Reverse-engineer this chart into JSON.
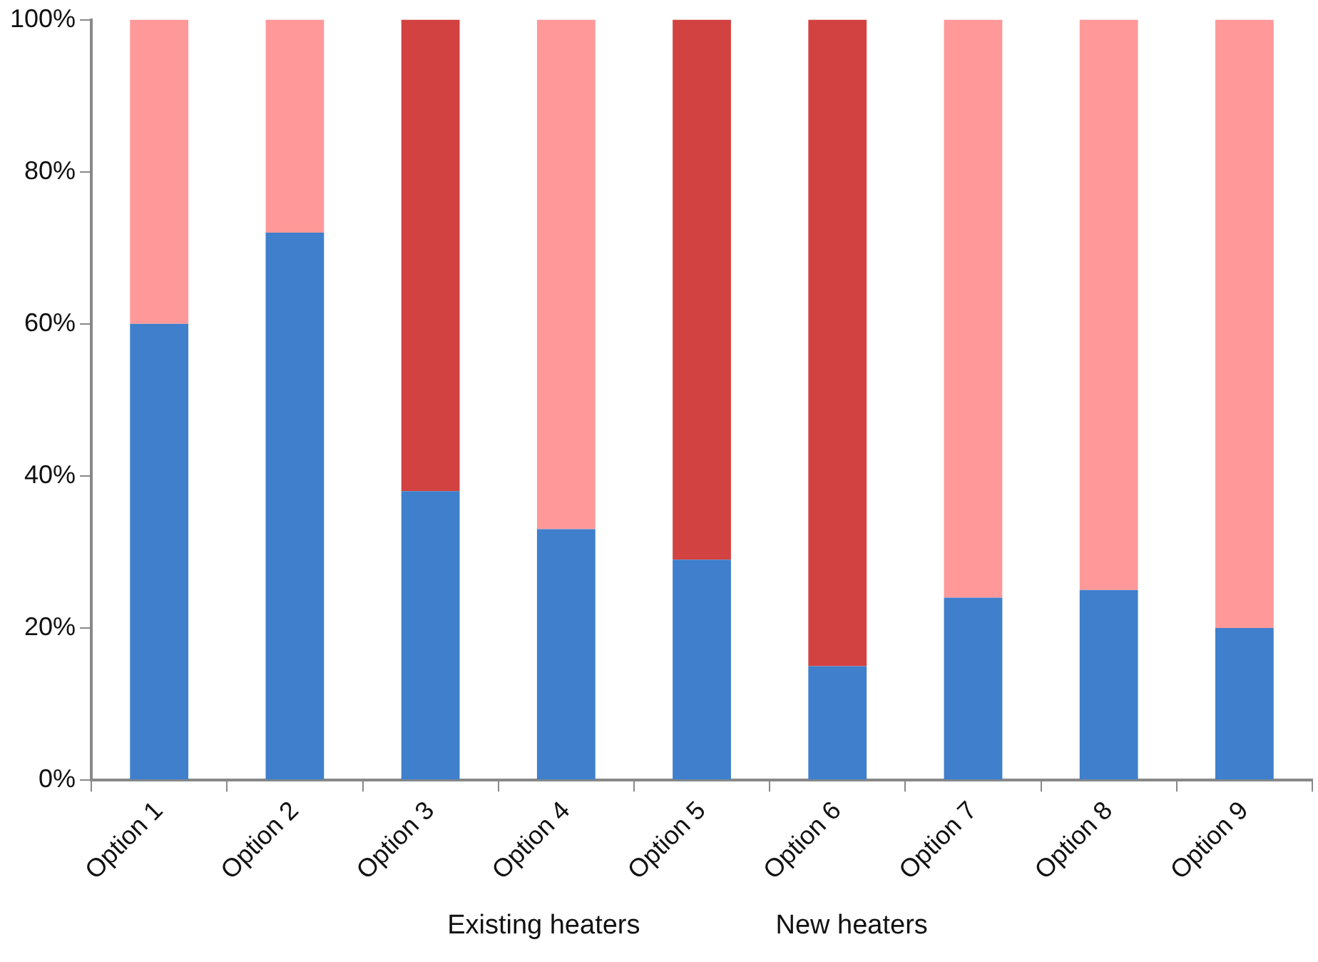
{
  "chart_data": {
    "type": "bar",
    "stacked": true,
    "categories": [
      "Option 1",
      "Option 2",
      "Option 3",
      "Option 4",
      "Option 5",
      "Option 6",
      "Option 7",
      "Option 8",
      "Option 9"
    ],
    "series": [
      {
        "color": "#3f7fcc",
        "values": [
          60,
          72,
          38,
          33,
          29,
          15,
          24,
          25,
          20
        ]
      },
      {
        "color": "#ff9999",
        "values": [
          40,
          28,
          null,
          67,
          null,
          null,
          76,
          75,
          80
        ]
      },
      {
        "color": "#d24240",
        "values": [
          null,
          null,
          62,
          null,
          71,
          85,
          null,
          null,
          null
        ]
      }
    ],
    "ylim": [
      0,
      100
    ],
    "yticks": [
      {
        "value": 0,
        "label": "0%"
      },
      {
        "value": 20,
        "label": "20%"
      },
      {
        "value": 40,
        "label": "40%"
      },
      {
        "value": 60,
        "label": "60%"
      },
      {
        "value": 80,
        "label": "80%"
      },
      {
        "value": 100,
        "label": "100%"
      }
    ],
    "grid": false,
    "legend": false,
    "annotations": [
      "Existing heaters",
      "New heaters"
    ]
  }
}
